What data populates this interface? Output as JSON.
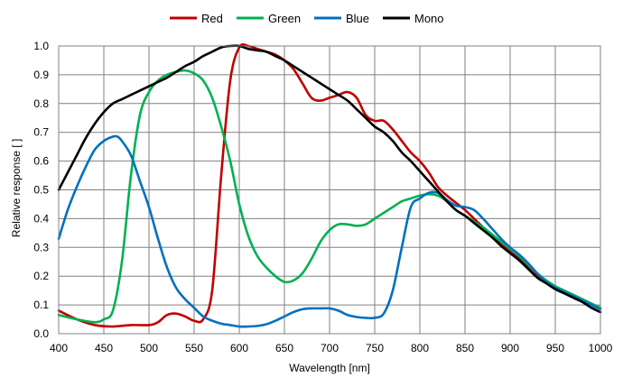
{
  "chart_data": {
    "type": "line",
    "title": "",
    "xlabel": "Wavelength  [nm]",
    "ylabel": "Relative response [ ]",
    "xlim": [
      400,
      1000
    ],
    "ylim": [
      0,
      1.0
    ],
    "x_ticks": [
      400,
      450,
      500,
      550,
      600,
      650,
      700,
      750,
      800,
      850,
      900,
      950,
      1000
    ],
    "y_ticks": [
      0.0,
      0.1,
      0.2,
      0.3,
      0.4,
      0.5,
      0.6,
      0.7,
      0.8,
      0.9,
      1.0
    ],
    "y_tick_labels": [
      "0.0",
      "0.1",
      "0.2",
      "0.3",
      "0.4",
      "0.5",
      "0.6",
      "0.7",
      "0.8",
      "0.9",
      "1.0"
    ],
    "grid": true,
    "legend_position": "top-center",
    "series": [
      {
        "name": "Red",
        "color": "#c00000",
        "points": [
          [
            400,
            0.08
          ],
          [
            420,
            0.05
          ],
          [
            440,
            0.03
          ],
          [
            460,
            0.025
          ],
          [
            480,
            0.03
          ],
          [
            500,
            0.03
          ],
          [
            510,
            0.04
          ],
          [
            520,
            0.065
          ],
          [
            530,
            0.07
          ],
          [
            540,
            0.06
          ],
          [
            550,
            0.045
          ],
          [
            560,
            0.05
          ],
          [
            570,
            0.15
          ],
          [
            580,
            0.55
          ],
          [
            590,
            0.88
          ],
          [
            600,
            0.995
          ],
          [
            610,
            1.0
          ],
          [
            620,
            0.99
          ],
          [
            630,
            0.98
          ],
          [
            640,
            0.97
          ],
          [
            650,
            0.95
          ],
          [
            660,
            0.92
          ],
          [
            670,
            0.87
          ],
          [
            680,
            0.82
          ],
          [
            690,
            0.81
          ],
          [
            700,
            0.82
          ],
          [
            710,
            0.83
          ],
          [
            720,
            0.84
          ],
          [
            730,
            0.82
          ],
          [
            740,
            0.76
          ],
          [
            750,
            0.74
          ],
          [
            760,
            0.74
          ],
          [
            770,
            0.71
          ],
          [
            780,
            0.67
          ],
          [
            790,
            0.63
          ],
          [
            800,
            0.6
          ],
          [
            810,
            0.56
          ],
          [
            820,
            0.51
          ],
          [
            830,
            0.48
          ],
          [
            840,
            0.455
          ],
          [
            850,
            0.43
          ],
          [
            860,
            0.4
          ],
          [
            870,
            0.37
          ],
          [
            880,
            0.34
          ],
          [
            890,
            0.31
          ],
          [
            900,
            0.285
          ],
          [
            910,
            0.26
          ],
          [
            920,
            0.23
          ],
          [
            930,
            0.2
          ],
          [
            940,
            0.18
          ],
          [
            950,
            0.16
          ],
          [
            960,
            0.145
          ],
          [
            970,
            0.13
          ],
          [
            980,
            0.115
          ],
          [
            990,
            0.1
          ],
          [
            1000,
            0.085
          ]
        ]
      },
      {
        "name": "Green",
        "color": "#00b050",
        "points": [
          [
            400,
            0.065
          ],
          [
            420,
            0.05
          ],
          [
            440,
            0.04
          ],
          [
            450,
            0.05
          ],
          [
            460,
            0.08
          ],
          [
            470,
            0.25
          ],
          [
            480,
            0.55
          ],
          [
            490,
            0.76
          ],
          [
            500,
            0.84
          ],
          [
            510,
            0.88
          ],
          [
            520,
            0.9
          ],
          [
            530,
            0.91
          ],
          [
            540,
            0.915
          ],
          [
            550,
            0.905
          ],
          [
            560,
            0.88
          ],
          [
            570,
            0.82
          ],
          [
            580,
            0.72
          ],
          [
            590,
            0.6
          ],
          [
            600,
            0.45
          ],
          [
            610,
            0.34
          ],
          [
            620,
            0.27
          ],
          [
            630,
            0.23
          ],
          [
            640,
            0.2
          ],
          [
            650,
            0.18
          ],
          [
            660,
            0.185
          ],
          [
            670,
            0.21
          ],
          [
            680,
            0.26
          ],
          [
            690,
            0.32
          ],
          [
            700,
            0.36
          ],
          [
            710,
            0.38
          ],
          [
            720,
            0.38
          ],
          [
            730,
            0.375
          ],
          [
            740,
            0.38
          ],
          [
            750,
            0.4
          ],
          [
            760,
            0.42
          ],
          [
            770,
            0.44
          ],
          [
            780,
            0.46
          ],
          [
            790,
            0.47
          ],
          [
            800,
            0.48
          ],
          [
            810,
            0.485
          ],
          [
            820,
            0.48
          ],
          [
            830,
            0.46
          ],
          [
            840,
            0.43
          ],
          [
            850,
            0.41
          ],
          [
            860,
            0.39
          ],
          [
            870,
            0.37
          ],
          [
            880,
            0.345
          ],
          [
            890,
            0.32
          ],
          [
            900,
            0.295
          ],
          [
            910,
            0.27
          ],
          [
            920,
            0.24
          ],
          [
            930,
            0.21
          ],
          [
            940,
            0.185
          ],
          [
            950,
            0.165
          ],
          [
            960,
            0.15
          ],
          [
            970,
            0.135
          ],
          [
            980,
            0.12
          ],
          [
            990,
            0.105
          ],
          [
            1000,
            0.09
          ]
        ]
      },
      {
        "name": "Blue",
        "color": "#0070c0",
        "points": [
          [
            400,
            0.33
          ],
          [
            410,
            0.43
          ],
          [
            420,
            0.51
          ],
          [
            430,
            0.58
          ],
          [
            440,
            0.64
          ],
          [
            450,
            0.67
          ],
          [
            460,
            0.685
          ],
          [
            465,
            0.685
          ],
          [
            470,
            0.67
          ],
          [
            480,
            0.62
          ],
          [
            490,
            0.53
          ],
          [
            500,
            0.44
          ],
          [
            510,
            0.33
          ],
          [
            520,
            0.23
          ],
          [
            530,
            0.16
          ],
          [
            540,
            0.12
          ],
          [
            550,
            0.09
          ],
          [
            560,
            0.06
          ],
          [
            570,
            0.045
          ],
          [
            580,
            0.035
          ],
          [
            590,
            0.03
          ],
          [
            600,
            0.025
          ],
          [
            610,
            0.025
          ],
          [
            620,
            0.027
          ],
          [
            630,
            0.033
          ],
          [
            640,
            0.045
          ],
          [
            650,
            0.06
          ],
          [
            660,
            0.075
          ],
          [
            670,
            0.085
          ],
          [
            680,
            0.088
          ],
          [
            690,
            0.088
          ],
          [
            700,
            0.088
          ],
          [
            710,
            0.08
          ],
          [
            720,
            0.065
          ],
          [
            730,
            0.058
          ],
          [
            740,
            0.055
          ],
          [
            750,
            0.055
          ],
          [
            760,
            0.07
          ],
          [
            770,
            0.15
          ],
          [
            780,
            0.3
          ],
          [
            790,
            0.44
          ],
          [
            800,
            0.47
          ],
          [
            810,
            0.49
          ],
          [
            820,
            0.49
          ],
          [
            830,
            0.465
          ],
          [
            840,
            0.445
          ],
          [
            850,
            0.44
          ],
          [
            860,
            0.43
          ],
          [
            870,
            0.4
          ],
          [
            880,
            0.365
          ],
          [
            890,
            0.33
          ],
          [
            900,
            0.3
          ],
          [
            910,
            0.275
          ],
          [
            920,
            0.245
          ],
          [
            930,
            0.21
          ],
          [
            940,
            0.18
          ],
          [
            950,
            0.16
          ],
          [
            960,
            0.145
          ],
          [
            970,
            0.13
          ],
          [
            980,
            0.115
          ],
          [
            990,
            0.1
          ],
          [
            1000,
            0.085
          ]
        ]
      },
      {
        "name": "Mono",
        "color": "#000000",
        "points": [
          [
            400,
            0.5
          ],
          [
            410,
            0.56
          ],
          [
            420,
            0.62
          ],
          [
            430,
            0.68
          ],
          [
            440,
            0.73
          ],
          [
            450,
            0.77
          ],
          [
            460,
            0.8
          ],
          [
            470,
            0.815
          ],
          [
            480,
            0.83
          ],
          [
            490,
            0.845
          ],
          [
            500,
            0.86
          ],
          [
            510,
            0.875
          ],
          [
            520,
            0.89
          ],
          [
            530,
            0.91
          ],
          [
            540,
            0.93
          ],
          [
            550,
            0.945
          ],
          [
            560,
            0.965
          ],
          [
            570,
            0.98
          ],
          [
            580,
            0.995
          ],
          [
            590,
            1.0
          ],
          [
            600,
            1.0
          ],
          [
            610,
            0.99
          ],
          [
            620,
            0.985
          ],
          [
            630,
            0.98
          ],
          [
            640,
            0.965
          ],
          [
            650,
            0.95
          ],
          [
            660,
            0.93
          ],
          [
            670,
            0.91
          ],
          [
            680,
            0.89
          ],
          [
            690,
            0.87
          ],
          [
            700,
            0.85
          ],
          [
            710,
            0.83
          ],
          [
            720,
            0.81
          ],
          [
            730,
            0.78
          ],
          [
            740,
            0.75
          ],
          [
            750,
            0.72
          ],
          [
            760,
            0.7
          ],
          [
            770,
            0.67
          ],
          [
            780,
            0.63
          ],
          [
            790,
            0.6
          ],
          [
            800,
            0.565
          ],
          [
            810,
            0.53
          ],
          [
            820,
            0.495
          ],
          [
            830,
            0.46
          ],
          [
            840,
            0.43
          ],
          [
            850,
            0.41
          ],
          [
            860,
            0.385
          ],
          [
            870,
            0.36
          ],
          [
            880,
            0.335
          ],
          [
            890,
            0.305
          ],
          [
            900,
            0.28
          ],
          [
            910,
            0.255
          ],
          [
            920,
            0.225
          ],
          [
            930,
            0.195
          ],
          [
            940,
            0.175
          ],
          [
            950,
            0.155
          ],
          [
            960,
            0.14
          ],
          [
            970,
            0.125
          ],
          [
            980,
            0.11
          ],
          [
            990,
            0.09
          ],
          [
            1000,
            0.075
          ]
        ]
      }
    ]
  }
}
